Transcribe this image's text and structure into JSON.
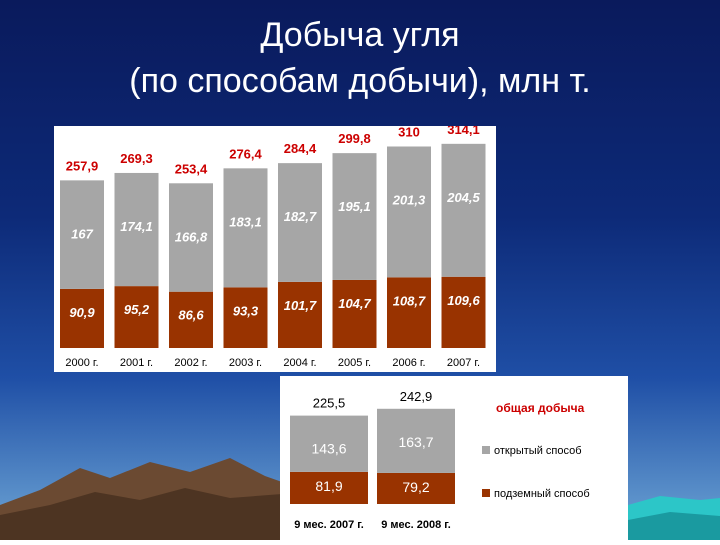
{
  "title": {
    "line1": "Добыча  угля",
    "line2": "(по способам добычи), млн т."
  },
  "colors": {
    "open": "#a6a6a6",
    "underground": "#993300",
    "total_label": "#cc0000",
    "background": "#0d2a78"
  },
  "chart_data": [
    {
      "type": "bar",
      "stacked": true,
      "categories": [
        "2000 г.",
        "2001 г.",
        "2002 г.",
        "2003 г.",
        "2004 г.",
        "2005 г.",
        "2006 г.",
        "2007 г."
      ],
      "categories_text": [
        "2000 г.",
        "2001 г.",
        "2002 г.",
        "2003 г.",
        "2004 г.",
        "2005 г.",
        "2006 г.",
        "2007 г."
      ],
      "series": [
        {
          "values": [
            90.9,
            95.2,
            86.6,
            93.3,
            101.7,
            104.7,
            108.7,
            109.6
          ],
          "labels": [
            "90,9",
            "95,2",
            "86,6",
            "93,3",
            "101,7",
            "104,7",
            "108,7",
            "109,6"
          ]
        },
        {
          "values": [
            167,
            174.1,
            166.8,
            183.1,
            182.7,
            195.1,
            201.3,
            204.5
          ],
          "labels": [
            "167",
            "174,1",
            "166,8",
            "183,1",
            "182,7",
            "195,1",
            "201,3",
            "204,5"
          ]
        }
      ],
      "totals": {
        "values": [
          257.9,
          269.3,
          253.4,
          276.4,
          284.4,
          299.8,
          310,
          314.1
        ],
        "labels": [
          "257,9",
          "269,3",
          "253,4",
          "276,4",
          "284,4",
          "299,8",
          "310",
          "314,1"
        ]
      },
      "ylim": [
        0,
        320
      ],
      "grid": false
    },
    {
      "type": "bar",
      "stacked": true,
      "categories": [
        "9 мес. 2007 г.",
        "9 мес. 2008 г."
      ],
      "categories_text": [
        "9 мес. 2007 г.",
        "9 мес. 2008 г."
      ],
      "series": [
        {
          "name": "подземный способ",
          "values": [
            81.9,
            79.2
          ],
          "labels": [
            "81,9",
            "79,2"
          ]
        },
        {
          "name": "открытый способ",
          "values": [
            143.6,
            163.7
          ],
          "labels": [
            "143,6",
            "163,7"
          ]
        }
      ],
      "totals": {
        "name": "общая добыча",
        "values": [
          225.5,
          242.9
        ],
        "labels": [
          "225,5",
          "242,9"
        ]
      },
      "legend": {
        "placement": "right",
        "total": "общая добыча",
        "open": "открытый способ",
        "underground": "подземный способ"
      },
      "ylim": [
        0,
        250
      ],
      "grid": false
    }
  ]
}
